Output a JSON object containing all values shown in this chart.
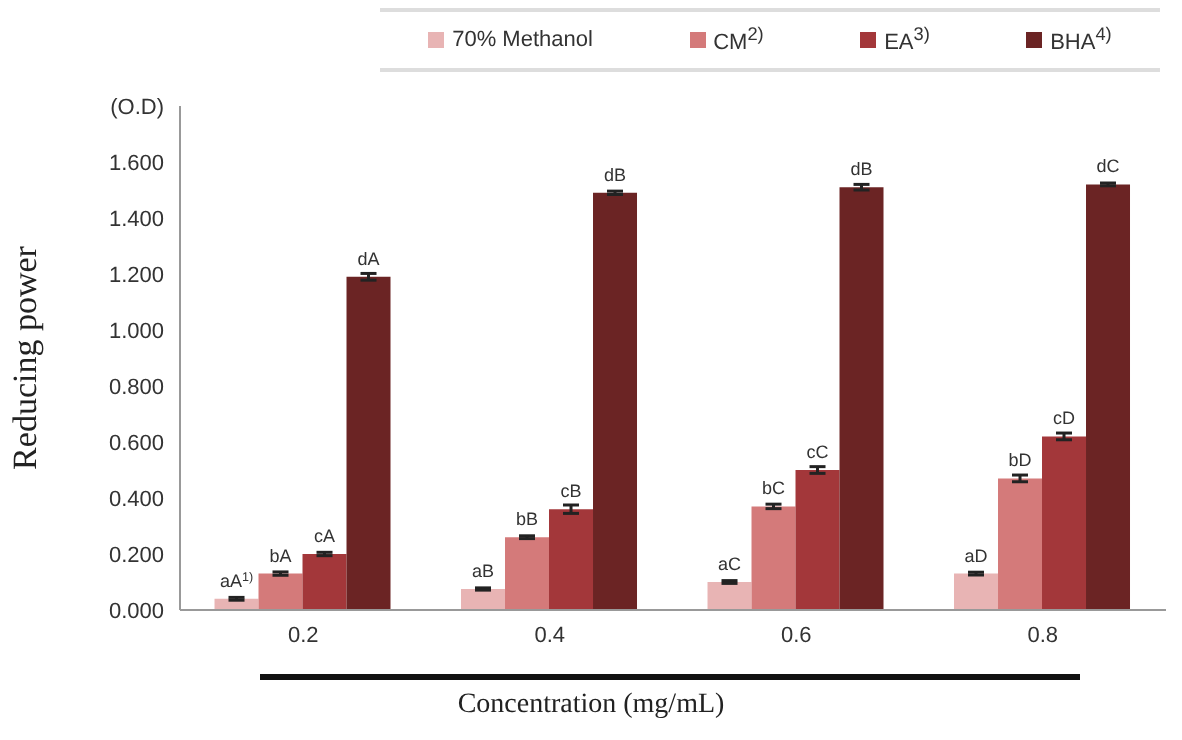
{
  "chart_data": {
    "type": "bar",
    "xlabel": "Concentration  (mg/mL)",
    "ylabel": "Reducing power",
    "categories": [
      "0.2",
      "0.4",
      "0.6",
      "0.8"
    ],
    "series": [
      {
        "name": "70% Methanol",
        "color": "#e8b4b4",
        "values": [
          0.04,
          0.075,
          0.1,
          0.13
        ],
        "errors": [
          0.005,
          0.004,
          0.005,
          0.005
        ]
      },
      {
        "name": "CM$^{2)}$",
        "color": "#d47a7a",
        "values": [
          0.13,
          0.26,
          0.37,
          0.47
        ],
        "errors": [
          0.006,
          0.005,
          0.008,
          0.012
        ]
      },
      {
        "name": "EA$^{3)}$",
        "color": "#a3373a",
        "values": [
          0.2,
          0.36,
          0.5,
          0.62
        ],
        "errors": [
          0.006,
          0.015,
          0.012,
          0.012
        ]
      },
      {
        "name": "BHA$^{4)}$",
        "color": "#6b2424",
        "values": [
          1.19,
          1.49,
          1.51,
          1.52
        ],
        "errors": [
          0.012,
          0.006,
          0.01,
          0.005
        ]
      }
    ],
    "annotations": [
      "aA$^{1)}$",
      "bA",
      "cA",
      "dA",
      "aB",
      "bB",
      "cB",
      "dB",
      "aC",
      "bC",
      "cC",
      "dB",
      "aD",
      "bD",
      "cD",
      "dC"
    ],
    "ylim": [
      0,
      1.8
    ],
    "yticks": [
      {
        "value": 0,
        "label": "0.000"
      },
      {
        "value": 0.2,
        "label": "0.200"
      },
      {
        "value": 0.4,
        "label": "0.400"
      },
      {
        "value": 0.6,
        "label": "0.600"
      },
      {
        "value": 0.8,
        "label": "0.800"
      },
      {
        "value": 1,
        "label": "1.000"
      },
      {
        "value": 1.2,
        "label": "1.200"
      },
      {
        "value": 1.4,
        "label": "1.400"
      },
      {
        "value": 1.6,
        "label": "1.600"
      },
      {
        "value": 1.8,
        "label": "(O.D)"
      }
    ],
    "legend": "top"
  }
}
